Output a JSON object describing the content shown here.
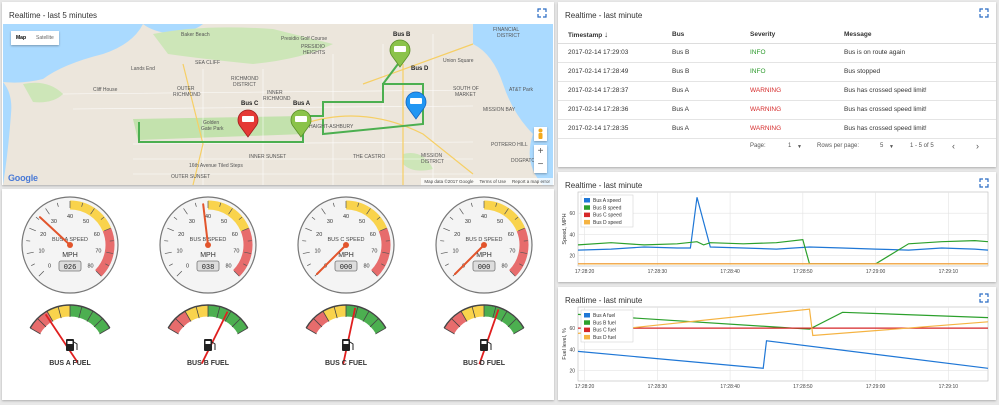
{
  "map_panel": {
    "title": "Realtime - last 5 minutes",
    "toggle_map": "Map",
    "toggle_satellite": "Satellite",
    "footer_data": "Map data ©2017 Google",
    "footer_terms": "Terms of Use",
    "footer_report": "Report a map error",
    "google": "Google",
    "labels": [
      {
        "text": "Baker Beach",
        "bold": false
      },
      {
        "text": "Presidio Golf Course",
        "bold": false
      },
      {
        "text": "PRESIDIO",
        "bold": false
      },
      {
        "text": "HEIGHTS",
        "bold": false
      },
      {
        "text": "SEA CLIFF",
        "bold": false
      },
      {
        "text": "Lands End",
        "bold": false
      },
      {
        "text": "RICHMOND",
        "bold": false
      },
      {
        "text": "DISTRICT",
        "bold": false
      },
      {
        "text": "OUTER",
        "bold": false
      },
      {
        "text": "RICHMOND",
        "bold": false
      },
      {
        "text": "Cliff House",
        "bold": false
      },
      {
        "text": "INNER",
        "bold": false
      },
      {
        "text": "RICHMOND",
        "bold": false
      },
      {
        "text": "Golden",
        "bold": false
      },
      {
        "text": "Gate Park",
        "bold": false
      },
      {
        "text": "HAIGHT-ASHBURY",
        "bold": false
      },
      {
        "text": "INNER SUNSET",
        "bold": false
      },
      {
        "text": "16th Avenue Tiled Steps",
        "bold": false
      },
      {
        "text": "OUTER SUNSET",
        "bold": false
      },
      {
        "text": "THE CASTRO",
        "bold": false
      },
      {
        "text": "MISSION",
        "bold": false
      },
      {
        "text": "DISTRICT",
        "bold": false
      },
      {
        "text": "FINANCIAL",
        "bold": false
      },
      {
        "text": "DISTRICT",
        "bold": false
      },
      {
        "text": "Union Square",
        "bold": false
      },
      {
        "text": "SOUTH OF",
        "bold": false
      },
      {
        "text": "MARKET",
        "bold": false
      },
      {
        "text": "AT&T Park",
        "bold": false
      },
      {
        "text": "MISSION BAY",
        "bold": false
      },
      {
        "text": "POTRERO HILL",
        "bold": false
      },
      {
        "text": "DOGPATCH",
        "bold": false
      }
    ],
    "buses": [
      {
        "name": "Bus B"
      },
      {
        "name": "Bus D"
      },
      {
        "name": "Bus C"
      },
      {
        "name": "Bus A"
      }
    ],
    "colors": {
      "route": "#4caf50",
      "bus_green": "#8bc34a",
      "bus_blue": "#2196f3",
      "bus_red": "#e53935"
    }
  },
  "table_panel": {
    "title": "Realtime - last minute",
    "headers": {
      "timestamp": "Timestamp",
      "bus": "Bus",
      "severity": "Severity",
      "message": "Message"
    },
    "rows": [
      {
        "timestamp": "2017-02-14 17:29:03",
        "bus": "Bus B",
        "severity": "INFO",
        "message": "Bus is on route again"
      },
      {
        "timestamp": "2017-02-14 17:28:49",
        "bus": "Bus B",
        "severity": "INFO",
        "message": "Bus stopped"
      },
      {
        "timestamp": "2017-02-14 17:28:37",
        "bus": "Bus A",
        "severity": "WARNING",
        "message": "Bus has crossed speed limit!"
      },
      {
        "timestamp": "2017-02-14 17:28:36",
        "bus": "Bus A",
        "severity": "WARNING",
        "message": "Bus has crossed speed limit!"
      },
      {
        "timestamp": "2017-02-14 17:28:35",
        "bus": "Bus A",
        "severity": "WARNING",
        "message": "Bus has crossed speed limit!"
      }
    ],
    "pager": {
      "page_label": "Page:",
      "page_value": "1",
      "rows_label": "Rows per page:",
      "rows_value": "5",
      "range": "1 - 5 of 5"
    }
  },
  "speed_panel": {
    "title": "Realtime - last minute"
  },
  "fuel_panel": {
    "title": "Realtime - last minute"
  },
  "chart_data": [
    {
      "type": "line",
      "title": "",
      "ylabel": "Speed, MPH",
      "xlabel": "",
      "x_ticks": [
        "17:28:20",
        "17:28:30",
        "17:28:40",
        "17:28:50",
        "17:29:00",
        "17:29:10"
      ],
      "y_ticks": [
        20,
        40,
        60
      ],
      "ylim": [
        10,
        80
      ],
      "legend_position": "top-left",
      "grid": true,
      "series": [
        {
          "name": "Bus A speed",
          "color": "#1f77d6",
          "x": [
            0,
            10,
            20,
            30,
            34,
            36,
            40,
            50,
            60,
            70,
            80,
            90,
            100,
            110,
            120,
            124
          ],
          "y": [
            25,
            26,
            28,
            27,
            27,
            75,
            28,
            27,
            26,
            28,
            27,
            26,
            25,
            27,
            26,
            25
          ]
        },
        {
          "name": "Bus B speed",
          "color": "#2ca02c",
          "x": [
            0,
            10,
            20,
            30,
            36,
            38,
            40,
            50,
            60,
            68,
            70,
            72,
            80,
            90,
            100,
            110,
            120,
            124
          ],
          "y": [
            30,
            32,
            30,
            31,
            33,
            30,
            32,
            31,
            32,
            35,
            12,
            12,
            12,
            12,
            31,
            33,
            34,
            33
          ]
        },
        {
          "name": "Bus C speed",
          "color": "#d62728",
          "x": [
            0,
            124
          ],
          "y": [
            12,
            12
          ]
        },
        {
          "name": "Bus D speed",
          "color": "#f5b342",
          "x": [
            0,
            124
          ],
          "y": [
            12,
            12
          ]
        }
      ]
    },
    {
      "type": "line",
      "title": "",
      "ylabel": "Fuel level, %",
      "xlabel": "",
      "x_ticks": [
        "17:28:20",
        "17:28:30",
        "17:28:40",
        "17:28:50",
        "17:29:00",
        "17:29:10"
      ],
      "y_ticks": [
        20,
        40,
        60
      ],
      "ylim": [
        10,
        80
      ],
      "legend_position": "top-left",
      "grid": true,
      "series": [
        {
          "name": "Bus A fuel",
          "color": "#1f77d6",
          "x": [
            0,
            56,
            57,
            124
          ],
          "y": [
            38,
            22,
            48,
            22
          ]
        },
        {
          "name": "Bus B fuel",
          "color": "#2ca02c",
          "x": [
            0,
            70,
            80,
            124
          ],
          "y": [
            73,
            59,
            75,
            70
          ]
        },
        {
          "name": "Bus C fuel",
          "color": "#d62728",
          "x": [
            0,
            124
          ],
          "y": [
            60,
            60
          ]
        },
        {
          "name": "Bus D fuel",
          "color": "#f5b342",
          "x": [
            0,
            70,
            71,
            124
          ],
          "y": [
            55,
            78,
            53,
            66
          ]
        }
      ]
    }
  ],
  "gauges": [
    {
      "label": "BUS A SPEED",
      "unit": "MPH",
      "value": 26,
      "readout": "026",
      "fuel_label": "BUS A FUEL",
      "fuel_pct": 22
    },
    {
      "label": "BUS B SPEED",
      "unit": "MPH",
      "value": 38,
      "readout": "038",
      "fuel_label": "BUS B FUEL",
      "fuel_pct": 72
    },
    {
      "label": "BUS C SPEED",
      "unit": "MPH",
      "value": 0,
      "readout": "000",
      "fuel_label": "BUS C FUEL",
      "fuel_pct": 60
    },
    {
      "label": "BUS D SPEED",
      "unit": "MPH",
      "value": 0,
      "readout": "000",
      "fuel_label": "BUS D FUEL",
      "fuel_pct": 66
    }
  ],
  "gauge_ticks": [
    "0",
    "10",
    "20",
    "30",
    "40",
    "50",
    "60",
    "70",
    "80"
  ]
}
